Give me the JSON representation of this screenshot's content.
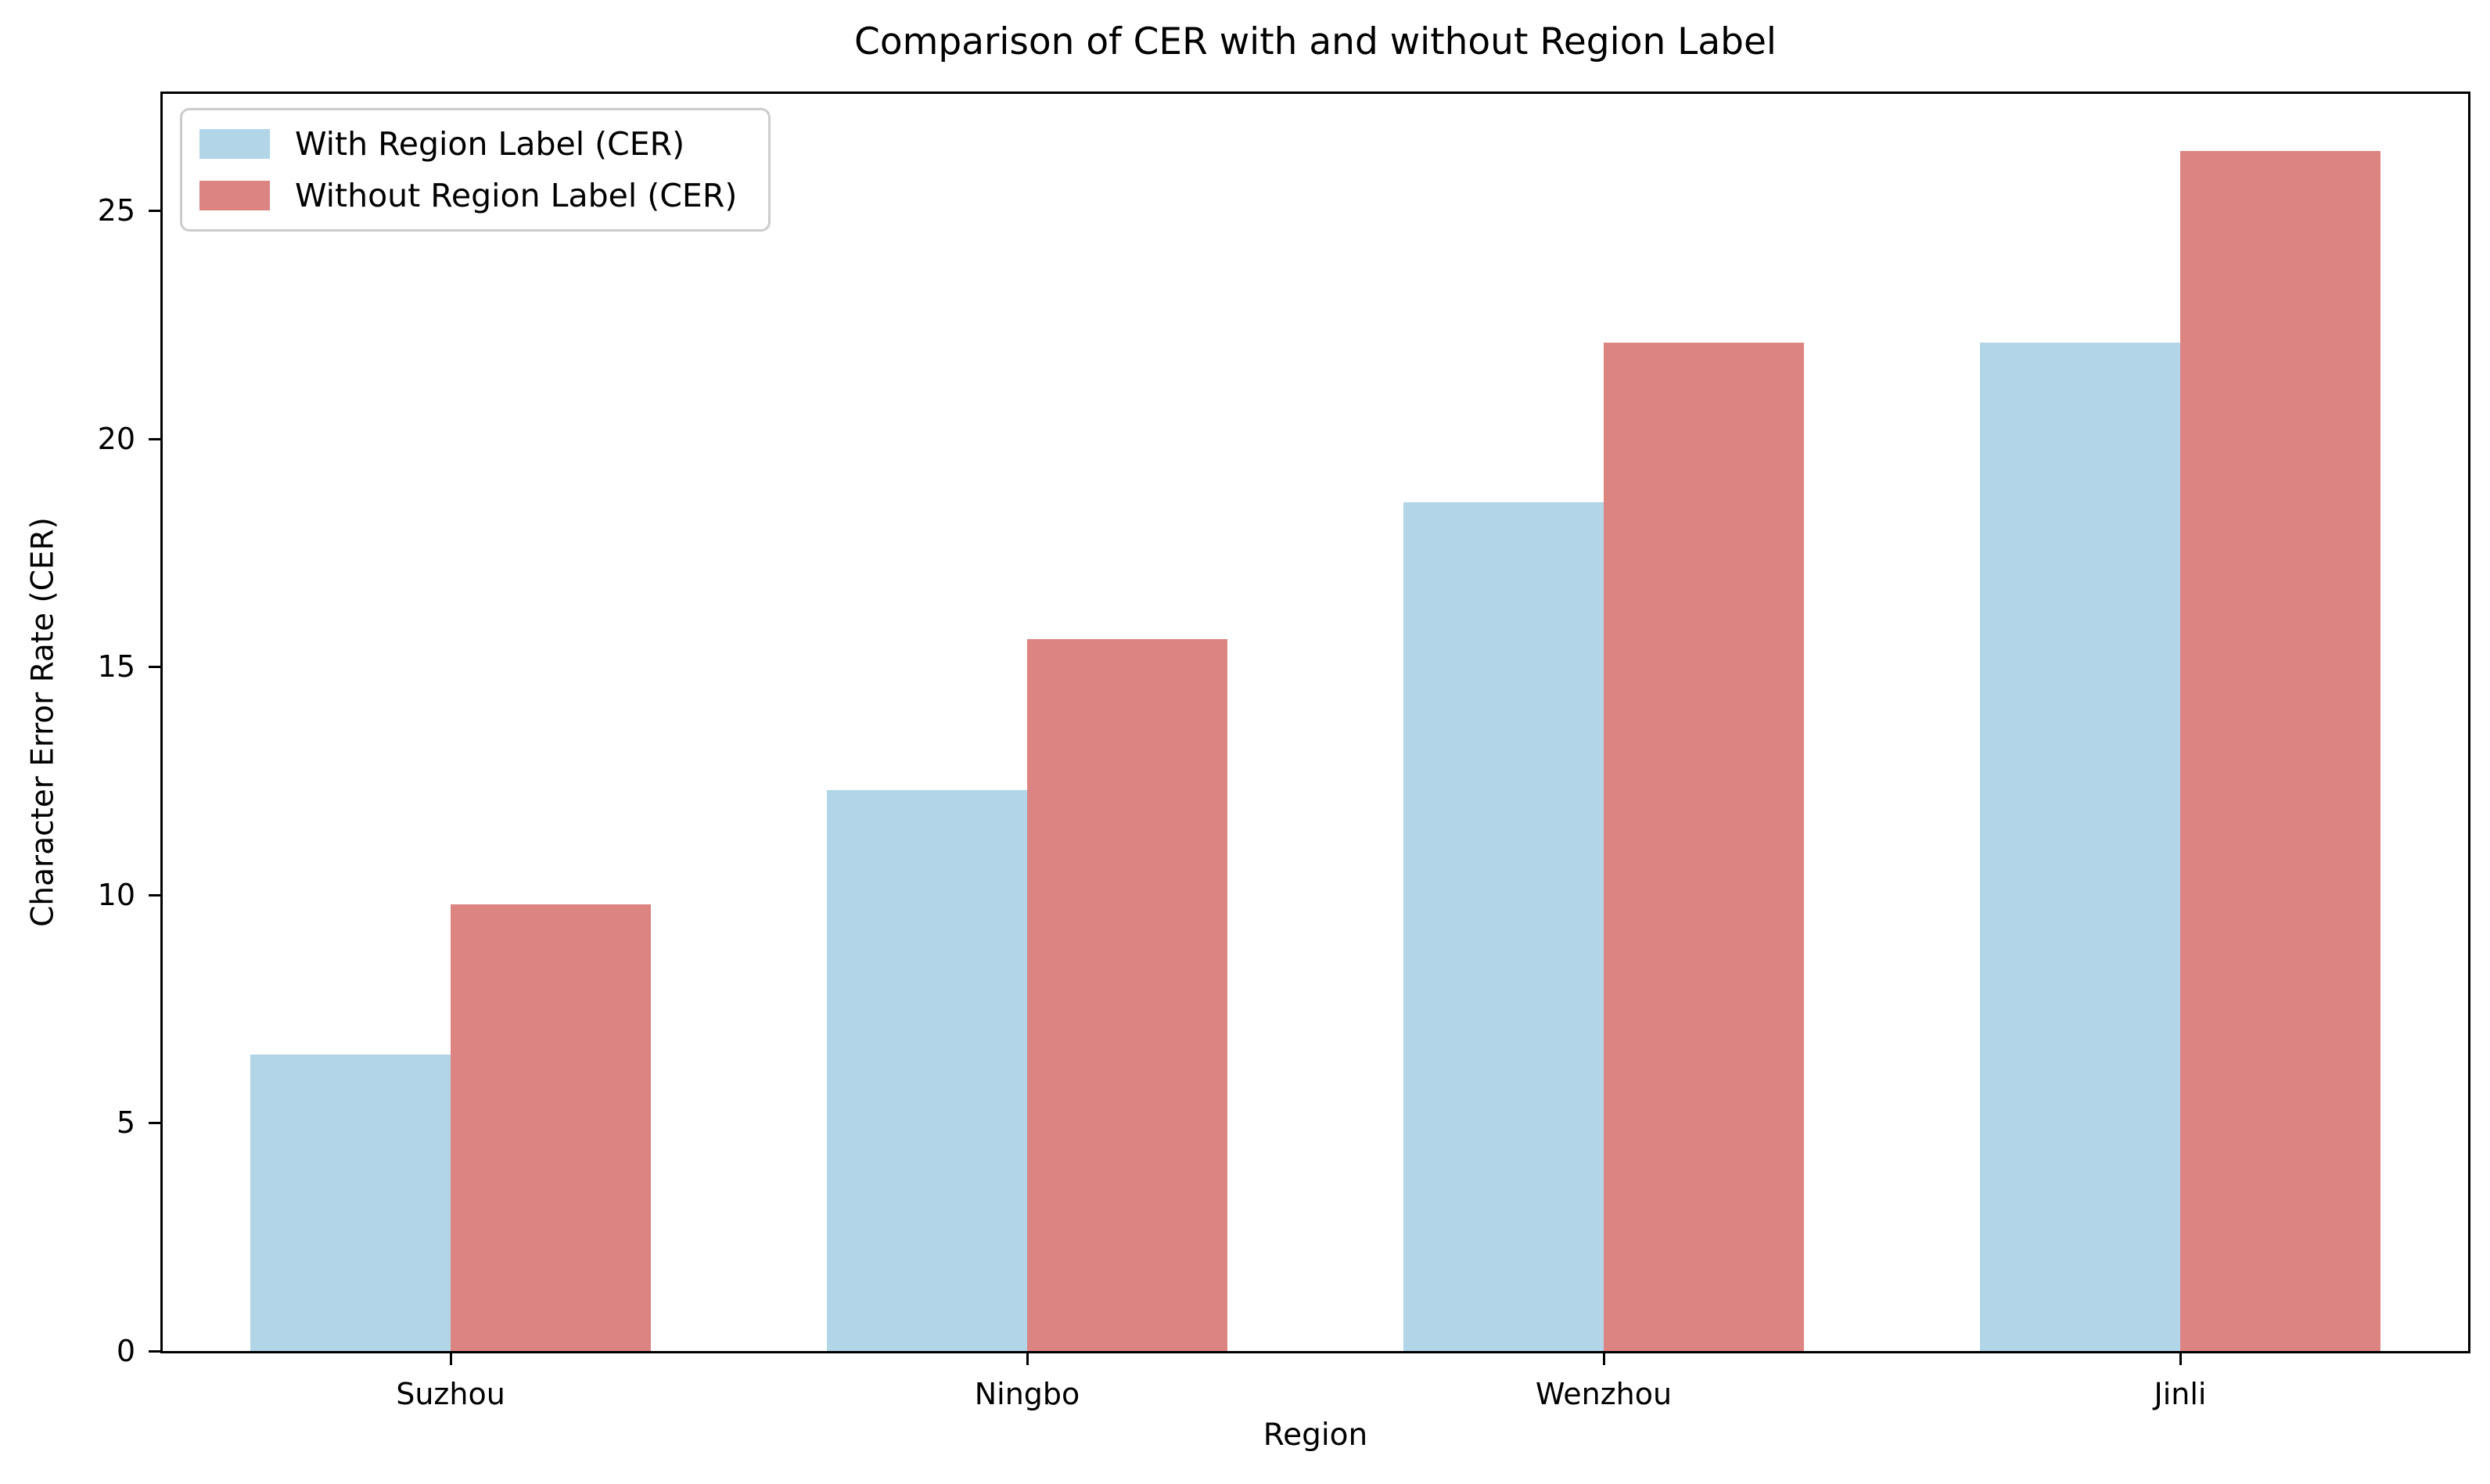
{
  "title": "Comparison of CER with and without Region Label",
  "chart_data": {
    "type": "bar",
    "categories": [
      "Suzhou",
      "Ningbo",
      "Wenzhou",
      "Jinli"
    ],
    "series": [
      {
        "name": "With Region Label (CER)",
        "color": "#b2d5e8",
        "values": [
          6.5,
          12.3,
          18.6,
          22.1
        ]
      },
      {
        "name": "Without Region Label (CER)",
        "color": "#dc8481",
        "values": [
          9.8,
          15.6,
          22.1,
          26.3
        ]
      }
    ],
    "title": "Comparison of CER with and without Region Label",
    "xlabel": "Region",
    "ylabel": "Character Error Rate (CER)",
    "ylim": [
      0,
      27.56
    ],
    "yticks": [
      0,
      5,
      10,
      15,
      20,
      25
    ],
    "legend_position": "upper left",
    "grid": false,
    "spine_color": "#000000",
    "background_color": "#ffffff",
    "legend_border_color": "#cccccc"
  }
}
